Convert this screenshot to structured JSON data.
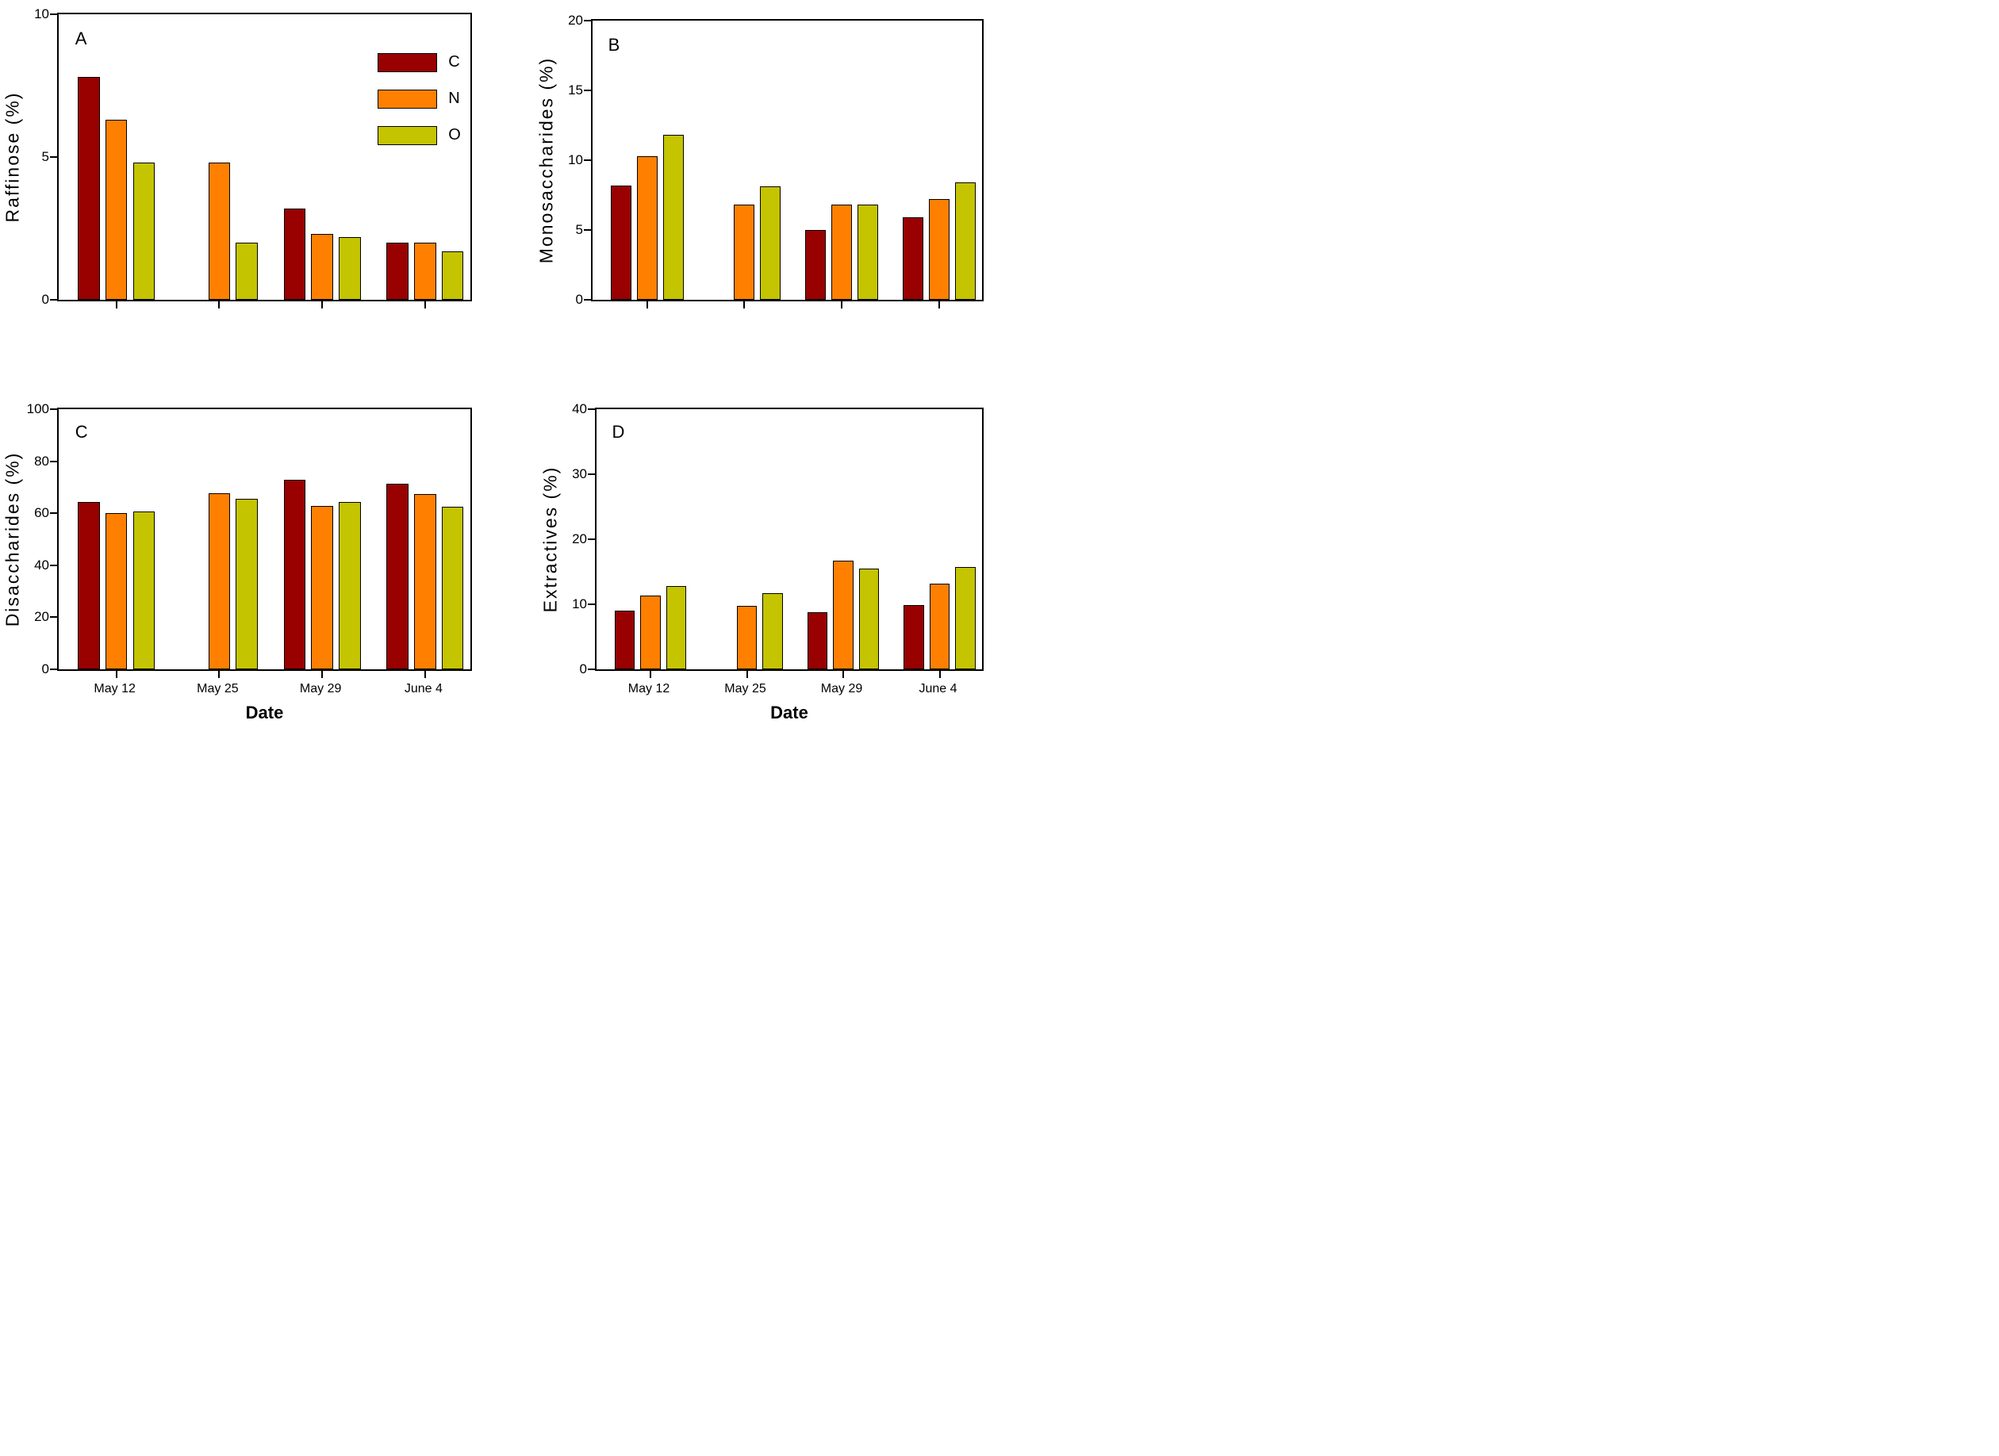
{
  "legend": {
    "entries": [
      "C",
      "N",
      "O"
    ],
    "position": "upper-right-of-panel-A"
  },
  "colors": {
    "C": "#990000",
    "N": "#FF8000",
    "O": "#C4C400"
  },
  "chart_data": [
    {
      "type": "bar",
      "panel": "A",
      "ylabel": "Raffinose (%)",
      "ylim": [
        0,
        10
      ],
      "yticks": [
        0,
        5,
        10
      ],
      "categories": [
        "May 12",
        "May 25",
        "May 29",
        "June 4"
      ],
      "show_x_labels": false,
      "grid": false,
      "series": [
        {
          "name": "C",
          "values": [
            7.8,
            null,
            3.2,
            2.0
          ]
        },
        {
          "name": "N",
          "values": [
            6.3,
            4.8,
            2.3,
            2.0
          ]
        },
        {
          "name": "O",
          "values": [
            4.8,
            2.0,
            2.2,
            1.7
          ]
        }
      ]
    },
    {
      "type": "bar",
      "panel": "B",
      "ylabel": "Monosaccharides (%)",
      "ylim": [
        0,
        20
      ],
      "yticks": [
        0,
        5,
        10,
        15,
        20
      ],
      "categories": [
        "May 12",
        "May 25",
        "May 29",
        "June 4"
      ],
      "show_x_labels": false,
      "grid": false,
      "series": [
        {
          "name": "C",
          "values": [
            8.2,
            null,
            5.0,
            5.9
          ]
        },
        {
          "name": "N",
          "values": [
            10.3,
            6.8,
            6.8,
            7.2
          ]
        },
        {
          "name": "O",
          "values": [
            11.8,
            8.1,
            6.8,
            8.4
          ]
        }
      ]
    },
    {
      "type": "bar",
      "panel": "C",
      "ylabel": "Disaccharides (%)",
      "xlabel": "Date",
      "ylim": [
        0,
        100
      ],
      "yticks": [
        0,
        20,
        40,
        60,
        80,
        100
      ],
      "categories": [
        "May 12",
        "May 25",
        "May 29",
        "June 4"
      ],
      "show_x_labels": true,
      "grid": false,
      "series": [
        {
          "name": "C",
          "values": [
            64.3,
            null,
            72.8,
            71.3
          ]
        },
        {
          "name": "N",
          "values": [
            60.2,
            67.6,
            62.9,
            67.4
          ]
        },
        {
          "name": "O",
          "values": [
            60.6,
            65.5,
            64.4,
            62.4
          ]
        }
      ]
    },
    {
      "type": "bar",
      "panel": "D",
      "ylabel": "Extractives (%)",
      "xlabel": "Date",
      "ylim": [
        0,
        40
      ],
      "yticks": [
        0,
        10,
        20,
        30,
        40
      ],
      "categories": [
        "May 12",
        "May 25",
        "May 29",
        "June 4"
      ],
      "show_x_labels": true,
      "grid": false,
      "series": [
        {
          "name": "C",
          "values": [
            9.0,
            null,
            8.8,
            9.9
          ]
        },
        {
          "name": "N",
          "values": [
            11.3,
            9.7,
            16.7,
            13.2
          ]
        },
        {
          "name": "O",
          "values": [
            12.8,
            11.7,
            15.5,
            15.7
          ]
        }
      ]
    }
  ]
}
